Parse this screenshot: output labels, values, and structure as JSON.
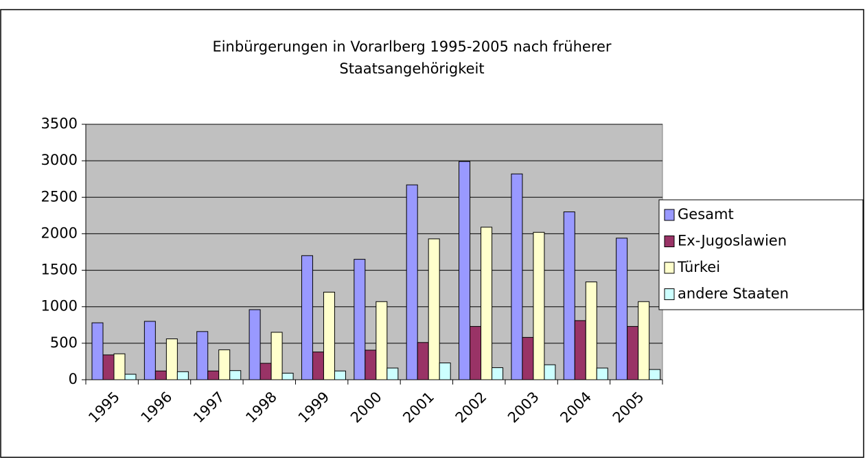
{
  "chart_data": {
    "type": "bar",
    "title": [
      "Einbürgerungen in Vorarlberg 1995-2005 nach früherer",
      "Staatsangehörigkeit"
    ],
    "categories": [
      "1995",
      "1996",
      "1997",
      "1998",
      "1999",
      "2000",
      "2001",
      "2002",
      "2003",
      "2004",
      "2005"
    ],
    "series": [
      {
        "name": "Gesamt",
        "color": "#9999ff",
        "values": [
          780,
          800,
          660,
          960,
          1700,
          1650,
          2670,
          2990,
          2820,
          2300,
          1940
        ]
      },
      {
        "name": "Ex-Jugoslawien",
        "color": "#993366",
        "values": [
          340,
          120,
          120,
          225,
          380,
          405,
          510,
          730,
          580,
          810,
          730
        ]
      },
      {
        "name": "Türkei",
        "color": "#ffffcc",
        "values": [
          355,
          560,
          410,
          650,
          1200,
          1070,
          1930,
          2090,
          2020,
          1340,
          1070
        ]
      },
      {
        "name": "andere Staaten",
        "color": "#ccffff",
        "values": [
          75,
          110,
          125,
          90,
          120,
          160,
          230,
          165,
          205,
          160,
          140
        ]
      }
    ],
    "ylim": [
      0,
      3500
    ],
    "yticks": [
      0,
      500,
      1000,
      1500,
      2000,
      2500,
      3000,
      3500
    ],
    "grid": true,
    "legend": "right",
    "plot_background": "#c0c0c0"
  }
}
